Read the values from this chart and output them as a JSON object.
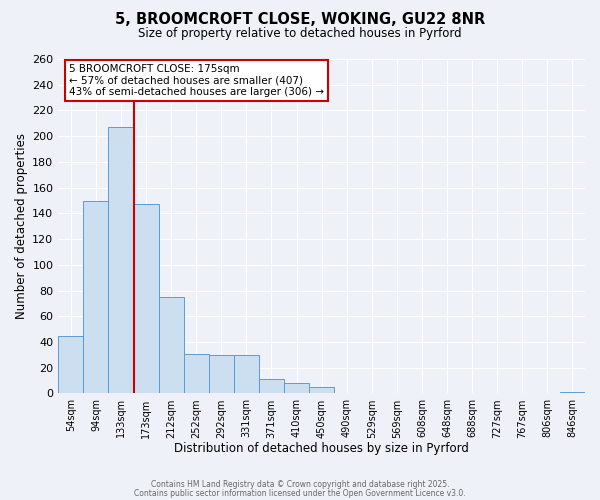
{
  "title1": "5, BROOMCROFT CLOSE, WOKING, GU22 8NR",
  "title2": "Size of property relative to detached houses in Pyrford",
  "xlabel": "Distribution of detached houses by size in Pyrford",
  "ylabel": "Number of detached properties",
  "bar_labels": [
    "54sqm",
    "94sqm",
    "133sqm",
    "173sqm",
    "212sqm",
    "252sqm",
    "292sqm",
    "331sqm",
    "371sqm",
    "410sqm",
    "450sqm",
    "490sqm",
    "529sqm",
    "569sqm",
    "608sqm",
    "648sqm",
    "688sqm",
    "727sqm",
    "767sqm",
    "806sqm",
    "846sqm"
  ],
  "bar_heights": [
    45,
    150,
    207,
    147,
    75,
    31,
    30,
    30,
    11,
    8,
    5,
    0,
    0,
    0,
    0,
    0,
    0,
    0,
    0,
    0,
    1
  ],
  "bar_color": "#ccdff0",
  "bar_edge_color": "#5b9bd5",
  "vline_x": 3,
  "vline_color": "#cc0000",
  "annotation_title": "5 BROOMCROFT CLOSE: 175sqm",
  "annotation_line1": "← 57% of detached houses are smaller (407)",
  "annotation_line2": "43% of semi-detached houses are larger (306) →",
  "annotation_box_facecolor": "#ffffff",
  "annotation_box_edgecolor": "#cc0000",
  "ylim": [
    0,
    260
  ],
  "yticks": [
    0,
    20,
    40,
    60,
    80,
    100,
    120,
    140,
    160,
    180,
    200,
    220,
    240,
    260
  ],
  "background_color": "#eef2f8",
  "grid_color": "#ffffff",
  "footnote1": "Contains HM Land Registry data © Crown copyright and database right 2025.",
  "footnote2": "Contains public sector information licensed under the Open Government Licence v3.0."
}
